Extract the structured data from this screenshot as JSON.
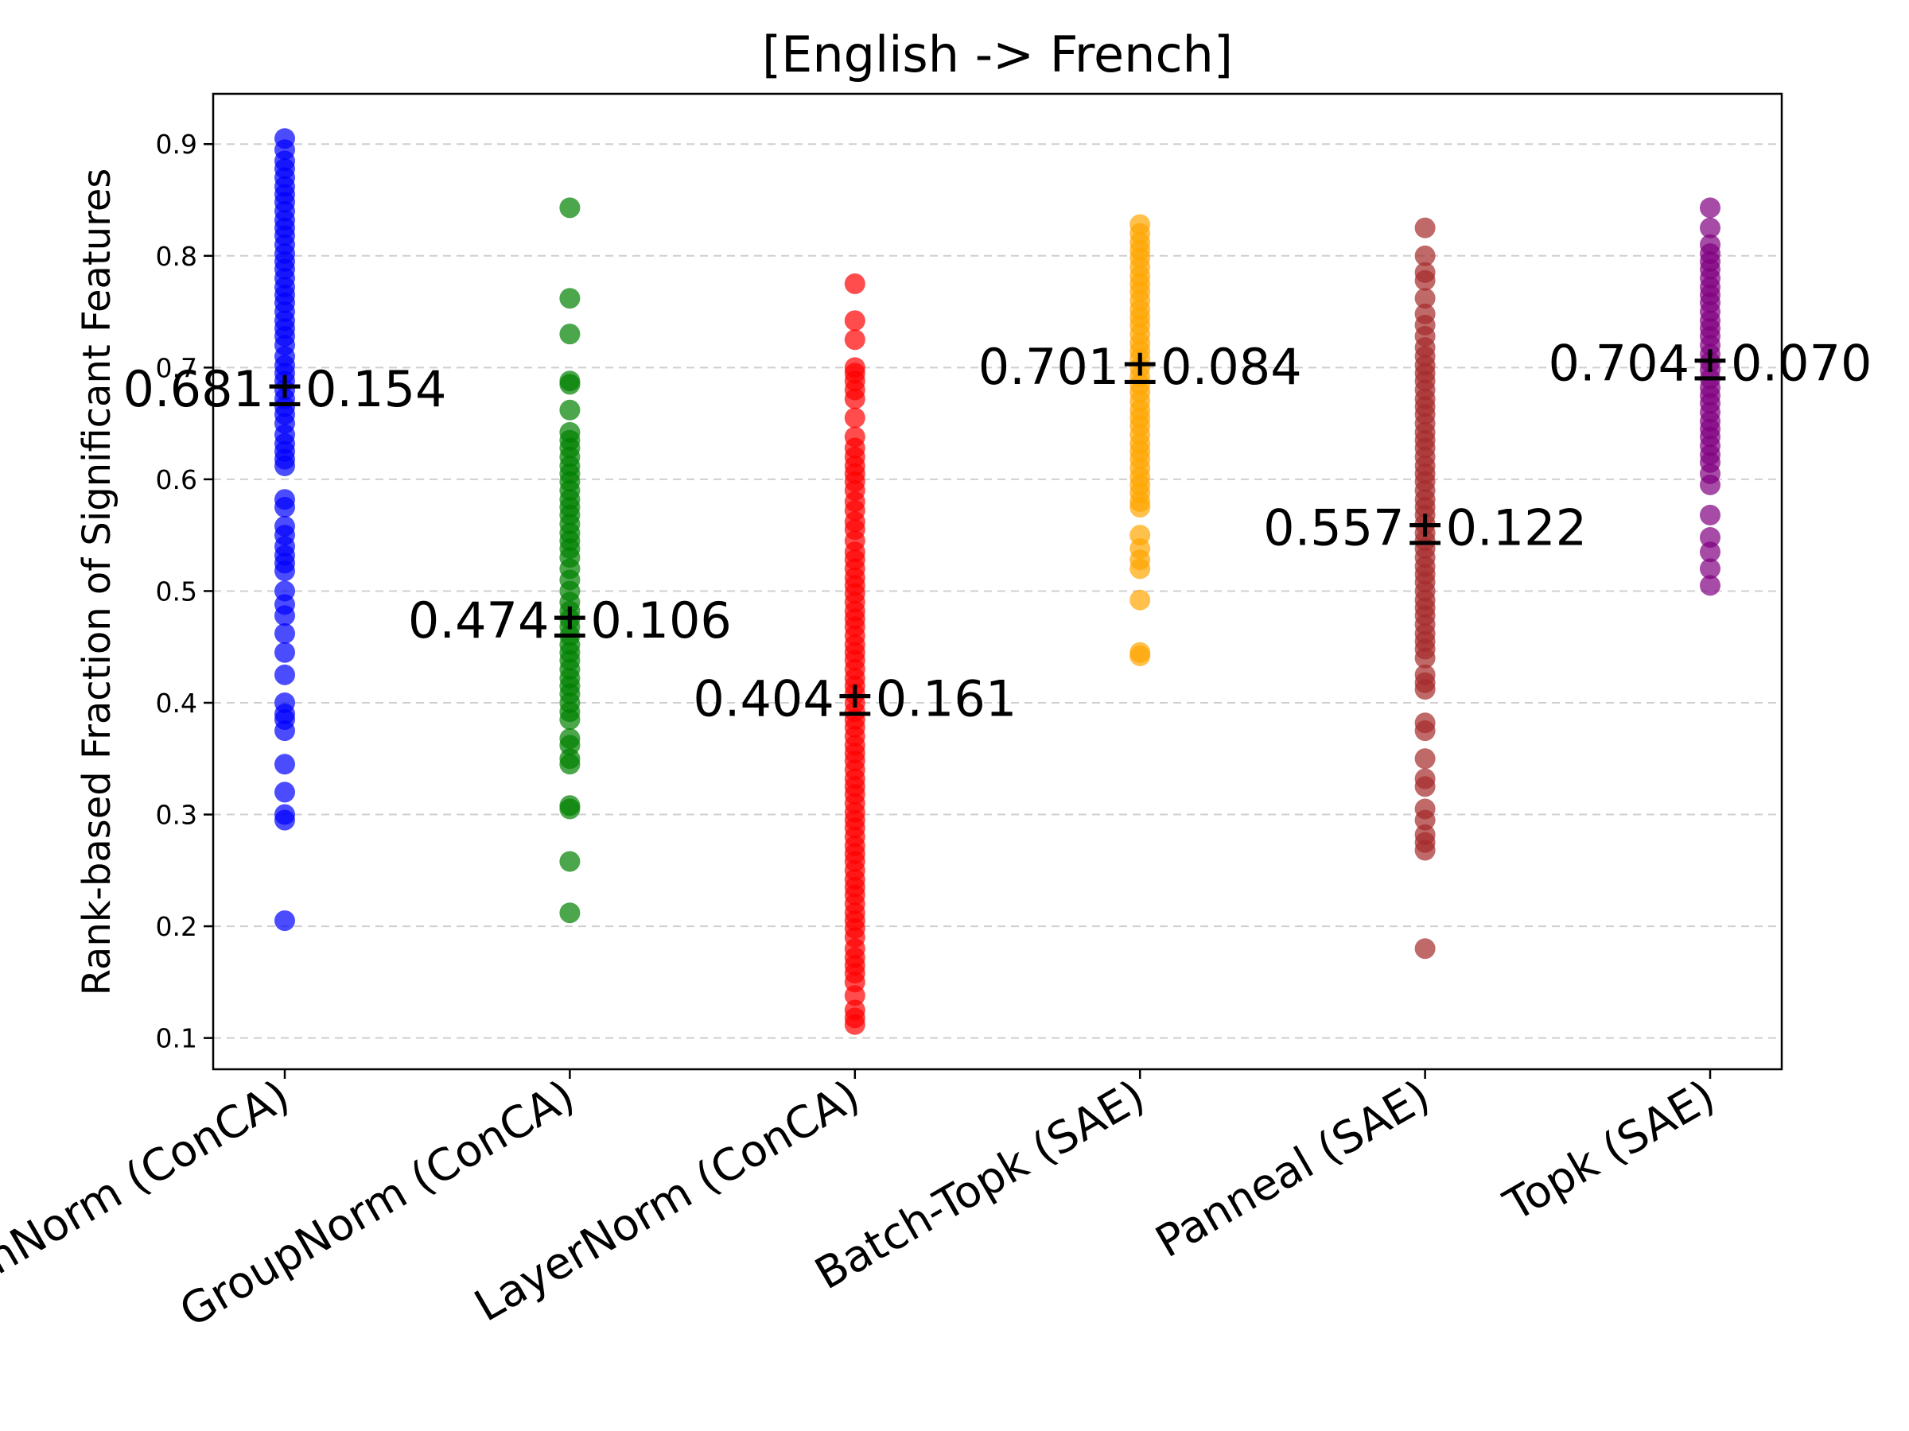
{
  "chart_data": {
    "type": "scatter",
    "title": "[English -> French]",
    "xlabel": "",
    "ylabel": "Rank-based Fraction of Significant Features",
    "ylim": [
      0.072,
      0.945
    ],
    "yticks": [
      0.1,
      0.2,
      0.3,
      0.4,
      0.5,
      0.6,
      0.7,
      0.8,
      0.9
    ],
    "grid": "horizontal dashed",
    "categories": [
      "BatchNorm (ConCA)",
      "GroupNorm (ConCA)",
      "LayerNorm (ConCA)",
      "Batch-Topk (SAE)",
      "Panneal (SAE)",
      "Topk (SAE)"
    ],
    "series": [
      {
        "category": "BatchNorm (ConCA)",
        "color": "#0000ff",
        "label": "0.681±0.154",
        "values": [
          0.905,
          0.895,
          0.885,
          0.878,
          0.87,
          0.862,
          0.855,
          0.848,
          0.84,
          0.832,
          0.825,
          0.818,
          0.81,
          0.802,
          0.795,
          0.788,
          0.78,
          0.772,
          0.765,
          0.758,
          0.75,
          0.742,
          0.735,
          0.728,
          0.72,
          0.71,
          0.702,
          0.695,
          0.688,
          0.68,
          0.672,
          0.665,
          0.658,
          0.65,
          0.64,
          0.632,
          0.625,
          0.618,
          0.612,
          0.582,
          0.575,
          0.558,
          0.55,
          0.54,
          0.532,
          0.525,
          0.518,
          0.5,
          0.488,
          0.478,
          0.462,
          0.445,
          0.425,
          0.4,
          0.39,
          0.385,
          0.375,
          0.345,
          0.32,
          0.3,
          0.295,
          0.205
        ]
      },
      {
        "category": "GroupNorm (ConCA)",
        "color": "#008000",
        "label": "0.474±0.106",
        "values": [
          0.843,
          0.762,
          0.73,
          0.688,
          0.685,
          0.662,
          0.642,
          0.635,
          0.628,
          0.62,
          0.612,
          0.605,
          0.598,
          0.59,
          0.582,
          0.575,
          0.568,
          0.56,
          0.552,
          0.545,
          0.538,
          0.53,
          0.52,
          0.51,
          0.5,
          0.49,
          0.482,
          0.475,
          0.468,
          0.46,
          0.452,
          0.445,
          0.438,
          0.43,
          0.422,
          0.415,
          0.408,
          0.4,
          0.392,
          0.385,
          0.368,
          0.362,
          0.35,
          0.345,
          0.308,
          0.305,
          0.258,
          0.212
        ]
      },
      {
        "category": "LayerNorm (ConCA)",
        "color": "#ff0000",
        "label": "0.404±0.161",
        "values": [
          0.775,
          0.742,
          0.725,
          0.7,
          0.695,
          0.688,
          0.68,
          0.672,
          0.655,
          0.638,
          0.628,
          0.62,
          0.612,
          0.605,
          0.598,
          0.59,
          0.58,
          0.572,
          0.562,
          0.555,
          0.545,
          0.535,
          0.528,
          0.52,
          0.512,
          0.505,
          0.498,
          0.49,
          0.482,
          0.475,
          0.468,
          0.46,
          0.452,
          0.445,
          0.438,
          0.43,
          0.422,
          0.415,
          0.408,
          0.4,
          0.392,
          0.385,
          0.378,
          0.37,
          0.362,
          0.355,
          0.348,
          0.34,
          0.332,
          0.325,
          0.318,
          0.31,
          0.302,
          0.295,
          0.288,
          0.28,
          0.272,
          0.265,
          0.258,
          0.25,
          0.242,
          0.235,
          0.228,
          0.22,
          0.212,
          0.205,
          0.198,
          0.19,
          0.18,
          0.172,
          0.165,
          0.158,
          0.15,
          0.138,
          0.125,
          0.118,
          0.112
        ]
      },
      {
        "category": "Batch-Topk (SAE)",
        "color": "#ffa500",
        "label": "0.701±0.084",
        "values": [
          0.828,
          0.82,
          0.812,
          0.805,
          0.798,
          0.79,
          0.782,
          0.775,
          0.768,
          0.76,
          0.752,
          0.745,
          0.738,
          0.73,
          0.722,
          0.715,
          0.708,
          0.7,
          0.692,
          0.685,
          0.678,
          0.67,
          0.662,
          0.655,
          0.648,
          0.64,
          0.632,
          0.625,
          0.618,
          0.61,
          0.602,
          0.595,
          0.588,
          0.58,
          0.575,
          0.55,
          0.538,
          0.528,
          0.52,
          0.492,
          0.445,
          0.442
        ]
      },
      {
        "category": "Panneal (SAE)",
        "color": "#a52a2a",
        "label": "0.557±0.122",
        "values": [
          0.825,
          0.8,
          0.785,
          0.778,
          0.762,
          0.748,
          0.738,
          0.728,
          0.718,
          0.71,
          0.702,
          0.695,
          0.688,
          0.68,
          0.672,
          0.665,
          0.658,
          0.65,
          0.642,
          0.635,
          0.628,
          0.62,
          0.612,
          0.605,
          0.598,
          0.59,
          0.582,
          0.575,
          0.568,
          0.56,
          0.552,
          0.545,
          0.538,
          0.53,
          0.522,
          0.515,
          0.508,
          0.5,
          0.492,
          0.485,
          0.478,
          0.47,
          0.462,
          0.455,
          0.448,
          0.44,
          0.425,
          0.418,
          0.412,
          0.382,
          0.375,
          0.35,
          0.332,
          0.325,
          0.305,
          0.295,
          0.282,
          0.275,
          0.268,
          0.18
        ]
      },
      {
        "category": "Topk (SAE)",
        "color": "#800080",
        "label": "0.704±0.070",
        "values": [
          0.843,
          0.825,
          0.81,
          0.802,
          0.795,
          0.788,
          0.78,
          0.772,
          0.765,
          0.758,
          0.75,
          0.742,
          0.735,
          0.728,
          0.72,
          0.712,
          0.705,
          0.698,
          0.69,
          0.682,
          0.675,
          0.668,
          0.66,
          0.652,
          0.645,
          0.638,
          0.63,
          0.622,
          0.615,
          0.605,
          0.595,
          0.568,
          0.548,
          0.535,
          0.52,
          0.505
        ]
      }
    ]
  }
}
